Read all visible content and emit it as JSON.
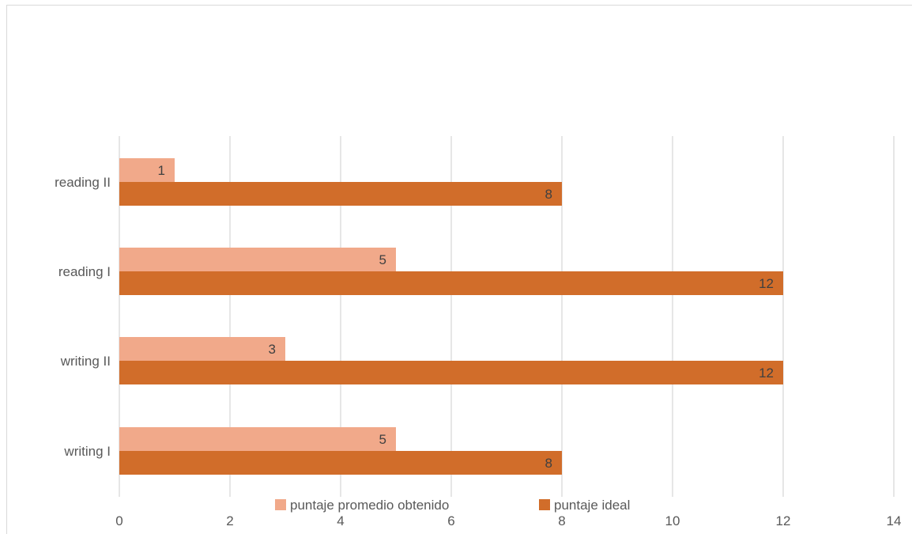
{
  "chart_data": {
    "type": "bar",
    "orientation": "horizontal",
    "categories": [
      "writing I",
      "writing II",
      "reading I",
      "reading II"
    ],
    "series": [
      {
        "name": "puntaje promedio obtenido",
        "values": [
          5,
          3,
          5,
          1
        ],
        "color": "#f1a98a"
      },
      {
        "name": "puntaje ideal",
        "values": [
          8,
          12,
          12,
          8
        ],
        "color": "#d16d2a"
      }
    ],
    "xlim": [
      0,
      14
    ],
    "xticks": [
      "0",
      "2",
      "4",
      "6",
      "8",
      "10",
      "12",
      "14"
    ],
    "grid": true,
    "data_labels": true,
    "legend_position": "bottom"
  }
}
